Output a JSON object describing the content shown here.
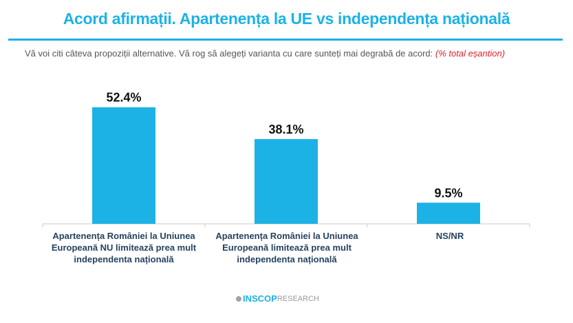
{
  "title": "Acord afirmații. Apartenența la UE vs independența națională",
  "subtitle": "Vă voi citi câteva propoziții alternative. Vă rog să alegeți varianta cu care sunteți mai degrabă de acord: ",
  "subtitle_note": "(% total eșantion)",
  "colors": {
    "accent": "#1cb2e6",
    "bar": "#1cb2e6",
    "label": "#24425f",
    "note": "#e0202a"
  },
  "logo": {
    "part1": "INSCOP",
    "part2": "RESEARCH"
  },
  "chart_data": {
    "type": "bar",
    "title": "Acord afirmații. Apartenența la UE vs independența națională",
    "categories": [
      "Apartenența României la Uniunea Europeană NU limitează prea mult independenta națională",
      "Apartenența României la Uniunea Europeană limitează prea mult independenta națională",
      "NS/NR"
    ],
    "values": [
      52.4,
      38.1,
      9.5
    ],
    "data_labels": [
      "52.4%",
      "38.1%",
      "9.5%"
    ],
    "ylim": [
      0,
      60
    ],
    "grid": false
  }
}
